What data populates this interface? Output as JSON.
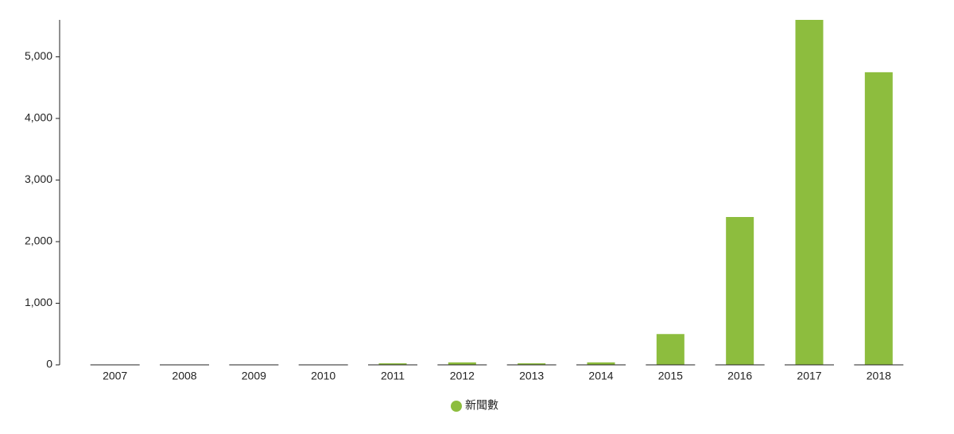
{
  "chart_data": {
    "type": "bar",
    "categories": [
      "2007",
      "2008",
      "2009",
      "2010",
      "2011",
      "2012",
      "2013",
      "2014",
      "2015",
      "2016",
      "2017",
      "2018"
    ],
    "series": [
      {
        "name": "新聞數",
        "color": "#8dbd3e",
        "values": [
          0,
          0,
          3,
          2,
          25,
          40,
          25,
          40,
          500,
          2400,
          5600,
          4750
        ]
      }
    ],
    "ylim": [
      0,
      5600
    ],
    "yticks": [
      0,
      {
        "value": 1000,
        "label": "1,000"
      },
      {
        "value": 2000,
        "label": "2,000"
      },
      {
        "value": 3000,
        "label": "3,000"
      },
      {
        "value": 4000,
        "label": "4,000"
      },
      {
        "value": 5000,
        "label": "5,000"
      }
    ],
    "legend": "bottom"
  }
}
